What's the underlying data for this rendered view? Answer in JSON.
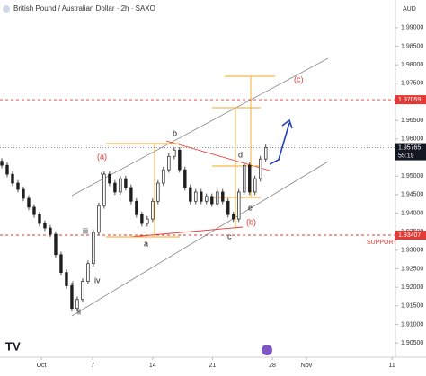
{
  "chart_data": {
    "type": "candlestick",
    "title": "British Pound / Australian Dollar · 2h · SAXO",
    "currency": "AUD",
    "x": [
      -3.63,
      -3.0,
      -2.37,
      -1.74,
      -1.11,
      -0.48,
      0.15,
      0.78,
      1.41,
      2.04,
      2.67,
      3.3,
      3.93,
      4.56,
      5.19,
      5.82,
      6.45,
      7.08,
      7.71,
      8.34,
      8.97,
      9.6,
      10.23,
      10.86,
      11.49,
      12.12,
      12.75,
      13.38,
      14.01,
      14.64,
      15.27,
      15.9,
      16.53,
      17.16,
      17.79,
      18.42,
      19.05,
      19.68,
      20.31,
      20.94,
      21.57,
      22.2,
      22.83,
      23.46,
      24.09,
      24.72,
      25.35,
      25.98,
      26.61,
      27.24
    ],
    "open": [
      1.954,
      1.9529,
      1.9505,
      1.9481,
      1.9464,
      1.944,
      1.9416,
      1.9396,
      1.9372,
      1.936,
      1.9343,
      1.9288,
      1.924,
      1.9204,
      1.9143,
      1.9167,
      1.9216,
      1.9264,
      1.9348,
      1.942,
      1.9505,
      1.9481,
      1.9457,
      1.9493,
      1.9469,
      1.9432,
      1.9396,
      1.9372,
      1.9384,
      1.9432,
      1.9481,
      1.9517,
      1.9553,
      1.957,
      1.9517,
      1.9469,
      1.9432,
      1.9457,
      1.9432,
      1.9445,
      1.9425,
      1.9457,
      1.9432,
      1.9396,
      1.9384,
      1.9457,
      1.9529,
      1.9457,
      1.9493,
      1.9546
    ],
    "high": [
      1.9548,
      1.9537,
      1.9513,
      1.9489,
      1.9472,
      1.9448,
      1.9424,
      1.9404,
      1.938,
      1.9368,
      1.9351,
      1.9296,
      1.9248,
      1.9212,
      1.9175,
      1.9224,
      1.9272,
      1.9356,
      1.9428,
      1.9513,
      1.9513,
      1.9489,
      1.9501,
      1.9501,
      1.9477,
      1.944,
      1.9404,
      1.9392,
      1.944,
      1.9489,
      1.9525,
      1.9561,
      1.9578,
      1.9578,
      1.9525,
      1.9477,
      1.9465,
      1.9465,
      1.9453,
      1.9453,
      1.9465,
      1.9465,
      1.944,
      1.9404,
      1.9465,
      1.9537,
      1.9537,
      1.9501,
      1.9554,
      1.9585
    ],
    "low": [
      1.9521,
      1.9497,
      1.9473,
      1.9456,
      1.9432,
      1.9408,
      1.9388,
      1.9364,
      1.9352,
      1.9335,
      1.928,
      1.9232,
      1.9196,
      1.9135,
      1.9135,
      1.9159,
      1.9208,
      1.9256,
      1.934,
      1.9412,
      1.9473,
      1.9449,
      1.9449,
      1.9461,
      1.9424,
      1.9388,
      1.9364,
      1.9364,
      1.9376,
      1.9424,
      1.9473,
      1.9509,
      1.9545,
      1.9509,
      1.9461,
      1.9424,
      1.9424,
      1.9424,
      1.9424,
      1.9417,
      1.9417,
      1.9424,
      1.9388,
      1.9376,
      1.9376,
      1.9449,
      1.9449,
      1.9449,
      1.9485,
      1.9538
    ],
    "close": [
      1.9529,
      1.9505,
      1.9481,
      1.9464,
      1.944,
      1.9416,
      1.9396,
      1.9372,
      1.936,
      1.9343,
      1.9288,
      1.924,
      1.9204,
      1.9143,
      1.9167,
      1.9216,
      1.9264,
      1.9348,
      1.942,
      1.9505,
      1.9481,
      1.9457,
      1.9493,
      1.9469,
      1.9432,
      1.9396,
      1.9372,
      1.9384,
      1.9432,
      1.9481,
      1.9517,
      1.9553,
      1.957,
      1.9517,
      1.9469,
      1.9432,
      1.9457,
      1.9432,
      1.9445,
      1.9425,
      1.9457,
      1.9432,
      1.9396,
      1.9384,
      1.9457,
      1.9529,
      1.9457,
      1.9493,
      1.9546,
      1.9577
    ],
    "color": "#1e1e1e",
    "xlim": [
      -3.84,
      42.4
    ],
    "xticks": [
      {
        "value": 1,
        "label": "Oct"
      },
      7,
      14,
      21,
      28,
      {
        "value": 32,
        "label": "Nov"
      },
      {
        "value": 42,
        "label": "11"
      }
    ],
    "ylim": [
      1.90116,
      1.99747
    ],
    "yticks": [
      {
        "value": 1.905,
        "label": "1.90500"
      },
      {
        "value": 1.91,
        "label": "1.91000"
      },
      {
        "value": 1.915,
        "label": "1.91500"
      },
      {
        "value": 1.92,
        "label": "1.92000"
      },
      {
        "value": 1.925,
        "label": "1.92500"
      },
      {
        "value": 1.93,
        "label": "1.93000"
      },
      {
        "value": 1.935,
        "label": "1.93500"
      },
      {
        "value": 1.94,
        "label": "1.94000"
      },
      {
        "value": 1.945,
        "label": "1.94500"
      },
      {
        "value": 1.95,
        "label": "1.95000"
      },
      {
        "value": 1.955,
        "label": "1.95500"
      },
      {
        "value": 1.96,
        "label": "1.96000"
      },
      {
        "value": 1.965,
        "label": "1.96500"
      },
      {
        "value": 1.97,
        "label": "1.97000"
      },
      {
        "value": 1.975,
        "label": "1.97500"
      },
      {
        "value": 1.98,
        "label": "1.98000"
      },
      {
        "value": 1.985,
        "label": "1.98500"
      },
      {
        "value": 1.99,
        "label": "1.99000"
      }
    ],
    "grid": false,
    "levels": [
      {
        "value": 1.97059,
        "color": "#e53935"
      },
      {
        "value": 1.93407,
        "color": "#e53935"
      }
    ],
    "last_price": 1.95765,
    "countdown": "55:19",
    "annotations": [
      "(a)",
      "(b)",
      "(c)",
      "a",
      "b",
      "c",
      "d",
      "e",
      "i",
      "ii",
      "iii",
      "iv",
      "v",
      "SUPPORT"
    ]
  }
}
